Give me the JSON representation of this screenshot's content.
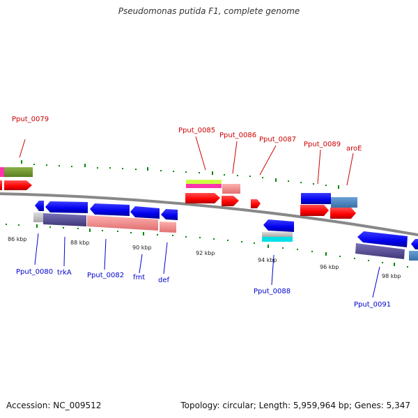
{
  "title": "Pseudomonas putida F1, complete genome",
  "footer": {
    "accession": "Accession: NC_009512",
    "summary": "Topology: circular; Length: 5,959,964 bp; Genes: 5,347"
  },
  "scale_labels": [
    "86 kbp",
    "88 kbp",
    "90 kbp",
    "92 kbp",
    "94 kbp",
    "96 kbp",
    "98 kbp"
  ],
  "genes_top": [
    "Pput_0079",
    "Pput_0085",
    "Pput_0086",
    "Pput_0087",
    "Pput_0089",
    "aroE"
  ],
  "genes_bottom": [
    "Pput_0080",
    "trkA",
    "Pput_0082",
    "fmt",
    "def",
    "Pput_0088",
    "Pput_0091"
  ],
  "colors": {
    "forward_cds": "#ff0000",
    "reverse_cds": "#0000ee",
    "tick": "#008800",
    "backbone": "#888888",
    "top_label": "#cc0000",
    "bottom_label": "#0000cc"
  }
}
